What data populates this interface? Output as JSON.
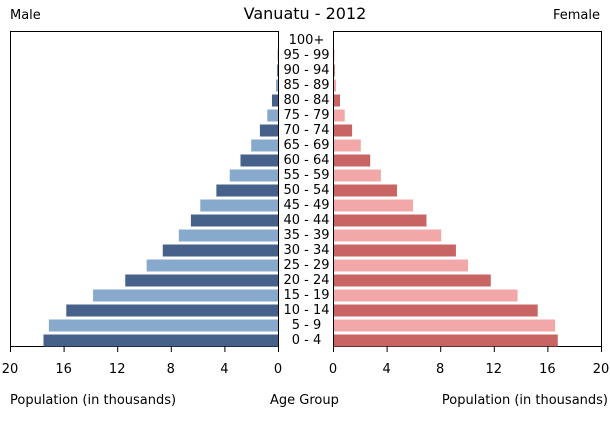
{
  "header": {
    "title": "Vanuatu - 2012",
    "male_label": "Male",
    "female_label": "Female"
  },
  "footer": {
    "xlabel_left": "Population (in thousands)",
    "xlabel_center": "Age Group",
    "xlabel_right": "Population (in thousands)"
  },
  "colors": {
    "male_dark": "#46628a",
    "male_light": "#87a9cc",
    "female_dark": "#c96464",
    "female_light": "#f2a8a8",
    "frame": "#000000"
  },
  "chart_data": {
    "type": "bar",
    "subtype": "population-pyramid",
    "title": "Vanuatu - 2012",
    "xlabel": "Population (in thousands)",
    "ylabel": "Age Group",
    "xlim": [
      0,
      20
    ],
    "x_ticks": [
      20,
      16,
      12,
      8,
      4,
      0
    ],
    "grid": false,
    "categories": [
      "100+",
      "95 - 99",
      "90 - 94",
      "85 - 89",
      "80 - 84",
      "75 - 79",
      "70 - 74",
      "65 - 69",
      "60 - 64",
      "55 - 59",
      "50 - 54",
      "45 - 49",
      "40 - 44",
      "35 - 39",
      "30 - 34",
      "25 - 29",
      "20 - 24",
      "15 - 19",
      "10 - 14",
      "5 - 9",
      "0 - 4"
    ],
    "series": [
      {
        "name": "Male",
        "values": [
          0,
          0.03,
          0.06,
          0.15,
          0.45,
          0.8,
          1.35,
          2.0,
          2.8,
          3.6,
          4.6,
          5.8,
          6.5,
          7.4,
          8.6,
          9.8,
          11.4,
          13.8,
          15.8,
          17.1,
          17.5
        ]
      },
      {
        "name": "Female",
        "values": [
          0,
          0.03,
          0.06,
          0.15,
          0.45,
          0.8,
          1.35,
          2.0,
          2.7,
          3.5,
          4.7,
          5.9,
          6.9,
          8.0,
          9.1,
          10.0,
          11.7,
          13.7,
          15.2,
          16.5,
          16.7
        ]
      }
    ]
  }
}
